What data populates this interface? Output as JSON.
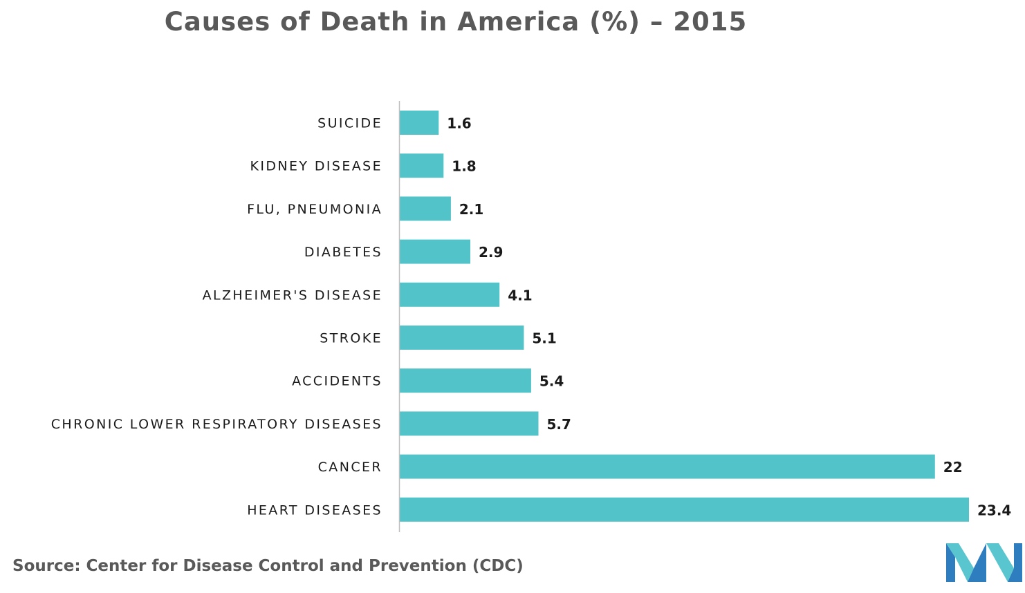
{
  "colors": {
    "bar": "#52C3C8",
    "axis": "#BFBFBF",
    "title": "#595959",
    "label": "#1a1a1a",
    "logo_dark": "#2E7DBE",
    "logo_light": "#59C6CF"
  },
  "source": "Source: Center for Disease Control and Prevention (CDC)",
  "logo": {
    "icon": "brand-logo-icon"
  },
  "chart_data": {
    "type": "bar",
    "orientation": "horizontal",
    "title": "Causes of Death in America (%) – 2015",
    "xlabel": "",
    "ylabel": "",
    "xlim": [
      0,
      23.4
    ],
    "grid": false,
    "legend": "none",
    "categories": [
      "SUICIDE",
      "KIDNEY DISEASE",
      "FLU, PNEUMONIA",
      "DIABETES",
      "ALZHEIMER'S DISEASE",
      "STROKE",
      "ACCIDENTS",
      "CHRONIC LOWER RESPIRATORY DISEASES",
      "CANCER",
      "HEART DISEASES"
    ],
    "values": [
      1.6,
      1.8,
      2.1,
      2.9,
      4.1,
      5.1,
      5.4,
      5.7,
      22,
      23.4
    ],
    "value_labels": [
      "1.6",
      "1.8",
      "2.1",
      "2.9",
      "4.1",
      "5.1",
      "5.4",
      "5.7",
      "22",
      "23.4"
    ]
  }
}
